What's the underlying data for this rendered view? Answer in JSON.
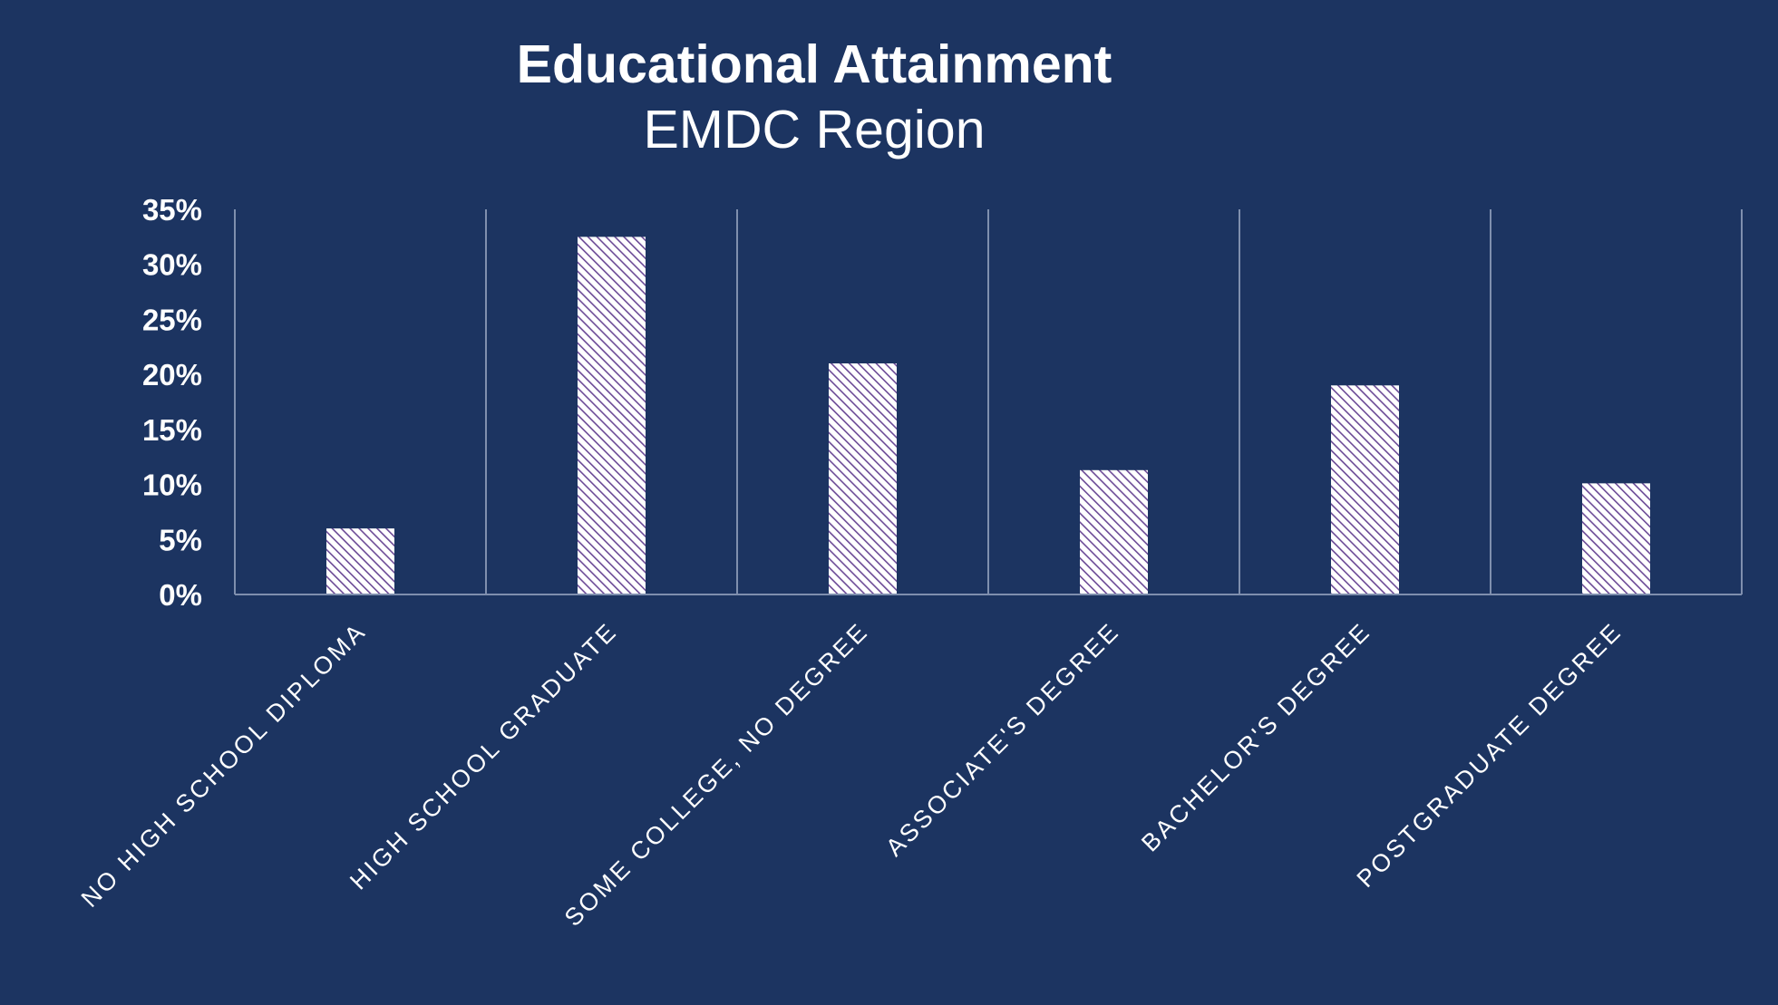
{
  "colors": {
    "background": "#1c3461",
    "text": "#ffffff",
    "gridline": "#7f8fae",
    "bar_fill": "#ffffff",
    "bar_hatch": "#6b4a96"
  },
  "chart_data": {
    "type": "bar",
    "title": "Educational Attainment",
    "subtitle": "EMDC Region",
    "xlabel": "",
    "ylabel": "",
    "categories": [
      "NO HIGH SCHOOL DIPLOMA",
      "HIGH SCHOOL GRADUATE",
      "SOME COLLEGE, NO DEGREE",
      "ASSOCIATE'S DEGREE",
      "BACHELOR'S DEGREE",
      "POSTGRADUATE DEGREE"
    ],
    "values": [
      6,
      32.5,
      21,
      11.3,
      19,
      10.1
    ],
    "ylim": [
      0,
      35
    ],
    "ytick_values": [
      0,
      5,
      10,
      15,
      20,
      25,
      30,
      35
    ],
    "ytick_labels": [
      "0%",
      "5%",
      "10%",
      "15%",
      "20%",
      "25%",
      "30%",
      "35%"
    ],
    "grid": "vertical",
    "legend": "none",
    "bar_pattern": "diagonal-hatch"
  }
}
